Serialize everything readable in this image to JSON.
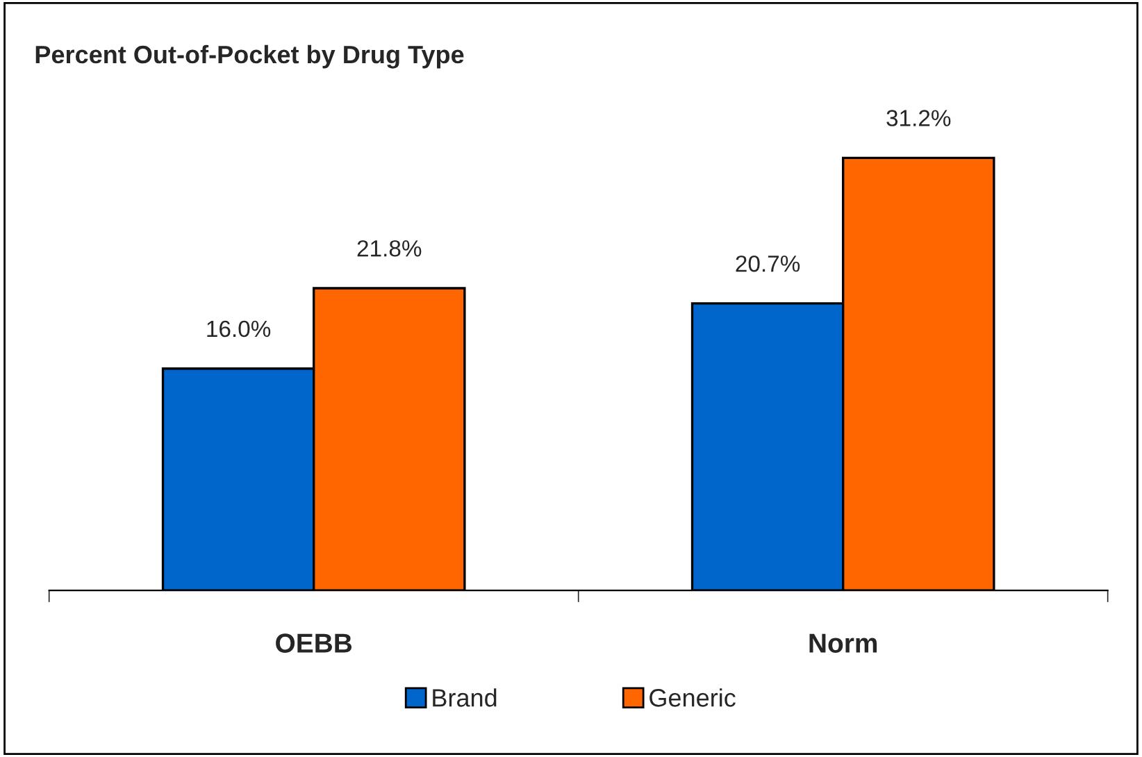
{
  "chart_data": {
    "type": "bar",
    "title": "Percent Out-of-Pocket by Drug Type",
    "categories": [
      "OEBB",
      "Norm"
    ],
    "series": [
      {
        "name": "Brand",
        "color": "#0066cc",
        "values": [
          16.0,
          20.7
        ],
        "value_labels": [
          "16.0%",
          "20.7%"
        ]
      },
      {
        "name": "Generic",
        "color": "#ff6600",
        "values": [
          21.8,
          31.2
        ],
        "value_labels": [
          "21.8%",
          "31.2%"
        ]
      }
    ],
    "legend": "bottom",
    "grid": false
  }
}
